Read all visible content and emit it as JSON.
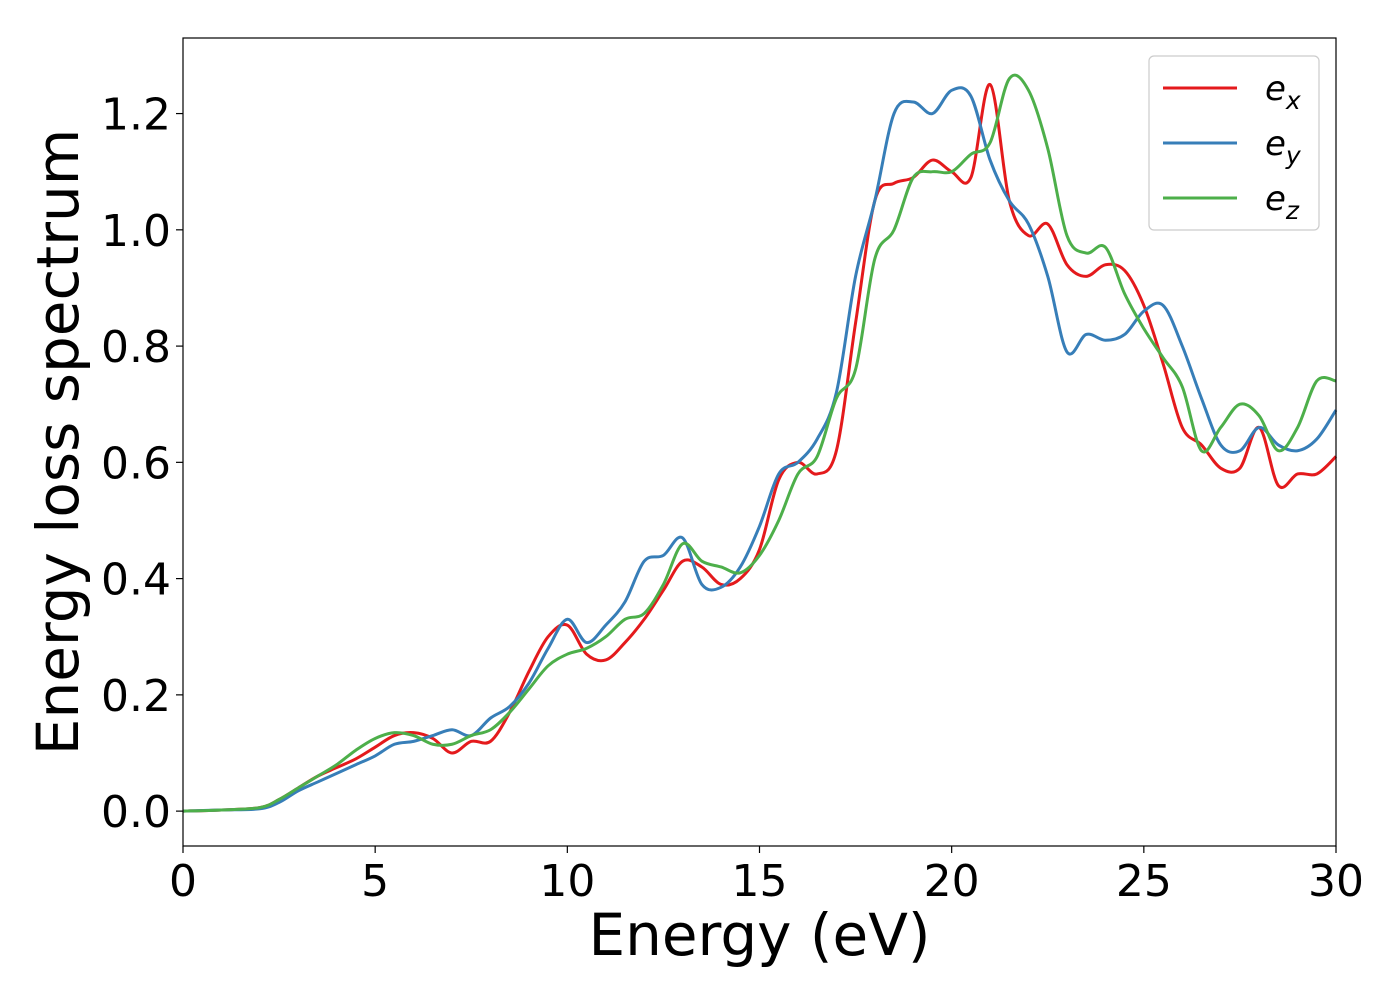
{
  "chart_data": {
    "type": "line",
    "title": "",
    "xlabel": "Energy (eV)",
    "ylabel": "Energy loss spectrum",
    "xlim": [
      0,
      30
    ],
    "ylim": [
      -0.06,
      1.33
    ],
    "xticks": [
      0,
      5,
      10,
      15,
      20,
      25,
      30
    ],
    "yticks": [
      0.0,
      0.2,
      0.4,
      0.6,
      0.8,
      1.0,
      1.2
    ],
    "xtick_labels": [
      "0",
      "5",
      "10",
      "15",
      "20",
      "25",
      "30"
    ],
    "ytick_labels": [
      "0.0",
      "0.2",
      "0.4",
      "0.6",
      "0.8",
      "1.0",
      "1.2"
    ],
    "grid": false,
    "legend_position": "top-right",
    "series": [
      {
        "name": "e",
        "subscript": "x",
        "color": "#e41a1c",
        "x": [
          0,
          1,
          2,
          2.5,
          3,
          3.5,
          4,
          4.5,
          5,
          5.5,
          6,
          6.5,
          7,
          7.5,
          8,
          8.5,
          9,
          9.5,
          10,
          10.5,
          11,
          11.5,
          12,
          12.5,
          13,
          13.5,
          14,
          14.5,
          15,
          15.5,
          16,
          16.5,
          17,
          17.5,
          18,
          18.5,
          19,
          19.5,
          20,
          20.5,
          21,
          21.5,
          22,
          22.5,
          23,
          23.5,
          24,
          24.5,
          25,
          25.5,
          26,
          26.5,
          27,
          27.5,
          28,
          28.5,
          29,
          29.5,
          30
        ],
        "values": [
          0.0,
          0.002,
          0.006,
          0.02,
          0.04,
          0.06,
          0.075,
          0.09,
          0.11,
          0.13,
          0.135,
          0.125,
          0.1,
          0.12,
          0.12,
          0.17,
          0.24,
          0.3,
          0.32,
          0.27,
          0.26,
          0.29,
          0.33,
          0.38,
          0.43,
          0.42,
          0.39,
          0.4,
          0.45,
          0.57,
          0.6,
          0.58,
          0.62,
          0.84,
          1.05,
          1.08,
          1.09,
          1.12,
          1.1,
          1.09,
          1.25,
          1.05,
          0.99,
          1.01,
          0.94,
          0.92,
          0.94,
          0.93,
          0.87,
          0.77,
          0.66,
          0.63,
          0.59,
          0.59,
          0.66,
          0.56,
          0.58,
          0.58,
          0.61
        ]
      },
      {
        "name": "e",
        "subscript": "y",
        "color": "#377eb8",
        "x": [
          0,
          1,
          2,
          2.5,
          3,
          3.5,
          4,
          4.5,
          5,
          5.5,
          6,
          6.5,
          7,
          7.5,
          8,
          8.5,
          9,
          9.5,
          10,
          10.5,
          11,
          11.5,
          12,
          12.5,
          13,
          13.5,
          14,
          14.5,
          15,
          15.5,
          16,
          16.5,
          17,
          17.5,
          18,
          18.5,
          19,
          19.5,
          20,
          20.5,
          21,
          21.5,
          22,
          22.5,
          23,
          23.5,
          24,
          24.5,
          25,
          25.5,
          26,
          26.5,
          27,
          27.5,
          28,
          28.5,
          29,
          29.5,
          30
        ],
        "values": [
          0.0,
          0.002,
          0.004,
          0.015,
          0.035,
          0.05,
          0.065,
          0.08,
          0.095,
          0.115,
          0.12,
          0.13,
          0.14,
          0.13,
          0.16,
          0.18,
          0.22,
          0.28,
          0.33,
          0.29,
          0.32,
          0.36,
          0.43,
          0.44,
          0.47,
          0.39,
          0.385,
          0.42,
          0.49,
          0.58,
          0.6,
          0.64,
          0.72,
          0.92,
          1.05,
          1.2,
          1.22,
          1.2,
          1.24,
          1.23,
          1.12,
          1.05,
          1.01,
          0.92,
          0.79,
          0.82,
          0.81,
          0.82,
          0.86,
          0.87,
          0.8,
          0.71,
          0.63,
          0.62,
          0.66,
          0.63,
          0.62,
          0.64,
          0.69
        ]
      },
      {
        "name": "e",
        "subscript": "z",
        "color": "#4daf4a",
        "x": [
          0,
          1,
          2,
          2.5,
          3,
          3.5,
          4,
          4.5,
          5,
          5.5,
          6,
          6.5,
          7,
          7.5,
          8,
          8.5,
          9,
          9.5,
          10,
          10.5,
          11,
          11.5,
          12,
          12.5,
          13,
          13.5,
          14,
          14.5,
          15,
          15.5,
          16,
          16.5,
          17,
          17.5,
          18,
          18.5,
          19,
          19.5,
          20,
          20.5,
          21,
          21.5,
          22,
          22.5,
          23,
          23.5,
          24,
          24.5,
          25,
          25.5,
          26,
          26.5,
          27,
          27.5,
          28,
          28.5,
          29,
          29.5,
          30
        ],
        "values": [
          0.0,
          0.002,
          0.006,
          0.02,
          0.04,
          0.06,
          0.08,
          0.105,
          0.125,
          0.135,
          0.13,
          0.115,
          0.115,
          0.13,
          0.14,
          0.17,
          0.21,
          0.25,
          0.27,
          0.28,
          0.3,
          0.33,
          0.34,
          0.39,
          0.46,
          0.43,
          0.42,
          0.41,
          0.44,
          0.5,
          0.58,
          0.61,
          0.71,
          0.76,
          0.95,
          1.0,
          1.09,
          1.1,
          1.1,
          1.13,
          1.15,
          1.26,
          1.24,
          1.14,
          0.99,
          0.96,
          0.97,
          0.89,
          0.83,
          0.78,
          0.73,
          0.62,
          0.66,
          0.7,
          0.68,
          0.62,
          0.66,
          0.74,
          0.74
        ]
      }
    ]
  }
}
